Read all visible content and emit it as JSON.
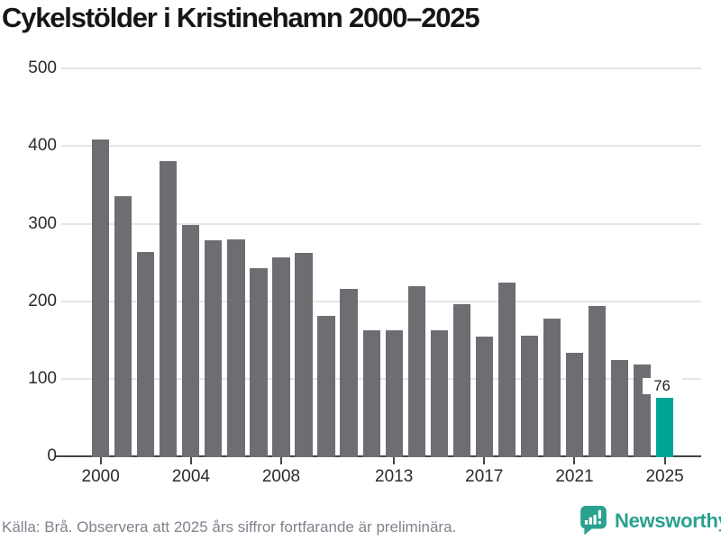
{
  "title": "Cykelstölder i Kristinehamn 2000–2025",
  "footer": {
    "source_note": "Källa: Brå. Observera att 2025 års siffror fortfarande är preliminära."
  },
  "branding": {
    "logo_text": "Newsworthy",
    "logo_icon": "newsworthy-bar-chart-bubble-icon"
  },
  "colors": {
    "bar_default": "#6d6e72",
    "bar_highlight": "#00a598",
    "gridline": "#e5e5e5",
    "axis": "#45464b",
    "axis_label": "#2b2b2f",
    "title_text": "#161616",
    "value_label": "#1f1f1f",
    "footer_text": "#7e838c",
    "logo": "#2aa18f"
  },
  "chart_data": {
    "type": "bar",
    "title": "Cykelstölder i Kristinehamn 2000–2025",
    "categories": [
      2000,
      2001,
      2002,
      2003,
      2004,
      2005,
      2006,
      2007,
      2008,
      2009,
      2010,
      2011,
      2012,
      2013,
      2014,
      2015,
      2016,
      2017,
      2018,
      2019,
      2020,
      2021,
      2022,
      2023,
      2024,
      2025
    ],
    "values": [
      409,
      335,
      263,
      381,
      298,
      278,
      280,
      243,
      257,
      262,
      181,
      216,
      163,
      163,
      219,
      163,
      196,
      154,
      224,
      155,
      177,
      134,
      194,
      124,
      118,
      76
    ],
    "highlight_category": 2025,
    "highlight_value_label": "76",
    "x_tick_labels": [
      "2000",
      "2004",
      "2008",
      "2013",
      "2017",
      "2021",
      "2025"
    ],
    "y_tick_labels": [
      "0",
      "100",
      "200",
      "300",
      "400",
      "500"
    ],
    "ylim": [
      0,
      500
    ],
    "grid": true,
    "legend": false
  }
}
